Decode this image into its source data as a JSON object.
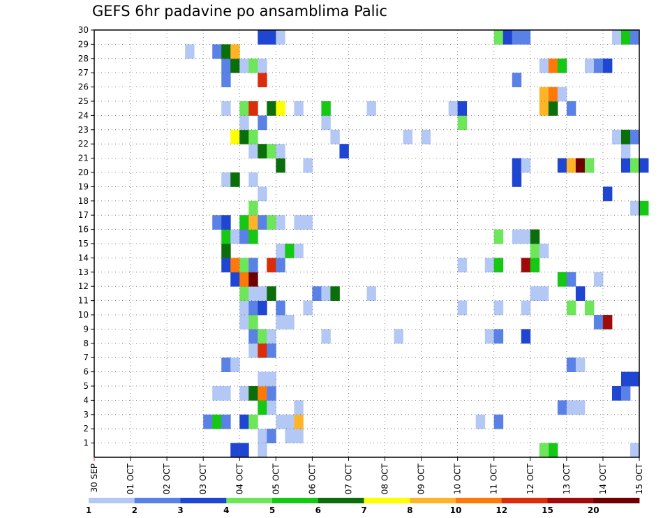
{
  "title": "GEFS 6hr padavine po ansamblima Palic",
  "chart_data": {
    "type": "heatmap",
    "title": "GEFS 6hr padavine po ansamblima Palic",
    "x_tick_labels": [
      "30 SEP",
      "01 OCT",
      "02 OCT",
      "03 OCT",
      "04 OCT",
      "05 OCT",
      "06 OCT",
      "07 OCT",
      "08 OCT",
      "09 OCT",
      "10 OCT",
      "11 OCT",
      "12 OCT",
      "13 OCT",
      "14 OCT",
      "15 OCT"
    ],
    "y_tick_labels": [
      "1",
      "2",
      "3",
      "4",
      "5",
      "6",
      "7",
      "8",
      "9",
      "10",
      "11",
      "12",
      "13",
      "14",
      "15",
      "16",
      "17",
      "18",
      "19",
      "20",
      "21",
      "22",
      "23",
      "24",
      "25",
      "26",
      "27",
      "28",
      "29",
      "30"
    ],
    "x_range_days": [
      0,
      15
    ],
    "y_range": [
      0,
      30
    ],
    "time_step_hours": 6,
    "grid": true,
    "colorbar": {
      "position": "bottom",
      "tick_labels": [
        "1",
        "2",
        "3",
        "4",
        "5",
        "6",
        "7",
        "8",
        "10",
        "12",
        "15",
        "20"
      ],
      "colors": [
        "#b4c8f5",
        "#5a82e6",
        "#1e46d2",
        "#6ee65a",
        "#14c814",
        "#0a6e0a",
        "#ffff00",
        "#ffb428",
        "#ff780a",
        "#dc2d0a",
        "#a00a0a",
        "#6e0000"
      ]
    },
    "cells": [
      [
        4.0,
        0,
        "#1e46d2"
      ],
      [
        4.5,
        0,
        "#b4c8f5"
      ],
      [
        3.75,
        0,
        "#1e46d2"
      ],
      [
        12.5,
        0,
        "#14c814"
      ],
      [
        12.25,
        0,
        "#6ee65a"
      ],
      [
        14.75,
        0,
        "#b4c8f5"
      ],
      [
        4.5,
        1,
        "#b4c8f5"
      ],
      [
        4.75,
        1,
        "#5a82e6"
      ],
      [
        5.5,
        1,
        "#b4c8f5"
      ],
      [
        5.25,
        1,
        "#b4c8f5"
      ],
      [
        3.0,
        2,
        "#5a82e6"
      ],
      [
        3.25,
        2,
        "#14c814"
      ],
      [
        3.5,
        2,
        "#5a82e6"
      ],
      [
        4.0,
        2,
        "#1e46d2"
      ],
      [
        4.25,
        2,
        "#6ee65a"
      ],
      [
        5.0,
        2,
        "#b4c8f5"
      ],
      [
        5.25,
        2,
        "#b4c8f5"
      ],
      [
        5.5,
        2,
        "#ffb428"
      ],
      [
        10.5,
        2,
        "#b4c8f5"
      ],
      [
        11.0,
        2,
        "#5a82e6"
      ],
      [
        4.5,
        3,
        "#14c814"
      ],
      [
        4.75,
        3,
        "#b4c8f5"
      ],
      [
        5.5,
        3,
        "#b4c8f5"
      ],
      [
        12.75,
        3,
        "#5a82e6"
      ],
      [
        13.0,
        3,
        "#b4c8f5"
      ],
      [
        13.25,
        3,
        "#b4c8f5"
      ],
      [
        3.25,
        4,
        "#b4c8f5"
      ],
      [
        3.5,
        4,
        "#b4c8f5"
      ],
      [
        4.0,
        4,
        "#b4c8f5"
      ],
      [
        4.25,
        4,
        "#0a6e0a"
      ],
      [
        4.5,
        4,
        "#ff780a"
      ],
      [
        4.75,
        4,
        "#5a82e6"
      ],
      [
        14.25,
        4,
        "#1e46d2"
      ],
      [
        14.5,
        4,
        "#5a82e6"
      ],
      [
        4.5,
        5,
        "#b4c8f5"
      ],
      [
        4.75,
        5,
        "#b4c8f5"
      ],
      [
        14.5,
        5,
        "#1e46d2"
      ],
      [
        14.75,
        5,
        "#1e46d2"
      ],
      [
        3.5,
        6,
        "#5a82e6"
      ],
      [
        3.75,
        6,
        "#b4c8f5"
      ],
      [
        13.0,
        6,
        "#5a82e6"
      ],
      [
        13.25,
        6,
        "#b4c8f5"
      ],
      [
        4.25,
        7,
        "#b4c8f5"
      ],
      [
        4.5,
        7,
        "#dc2d0a"
      ],
      [
        4.75,
        7,
        "#5a82e6"
      ],
      [
        4.25,
        8,
        "#5a82e6"
      ],
      [
        4.5,
        8,
        "#6ee65a"
      ],
      [
        4.75,
        8,
        "#b4c8f5"
      ],
      [
        6.25,
        8,
        "#b4c8f5"
      ],
      [
        8.25,
        8,
        "#b4c8f5"
      ],
      [
        10.75,
        8,
        "#b4c8f5"
      ],
      [
        11.0,
        8,
        "#5a82e6"
      ],
      [
        11.75,
        8,
        "#1e46d2"
      ],
      [
        4.0,
        9,
        "#b4c8f5"
      ],
      [
        4.25,
        9,
        "#6ee65a"
      ],
      [
        5.0,
        9,
        "#b4c8f5"
      ],
      [
        5.25,
        9,
        "#b4c8f5"
      ],
      [
        13.75,
        9,
        "#5a82e6"
      ],
      [
        14.0,
        9,
        "#a00a0a"
      ],
      [
        4.0,
        10,
        "#b4c8f5"
      ],
      [
        4.25,
        10,
        "#5a82e6"
      ],
      [
        4.5,
        10,
        "#1e46d2"
      ],
      [
        5.0,
        10,
        "#5a82e6"
      ],
      [
        5.75,
        10,
        "#b4c8f5"
      ],
      [
        10.0,
        10,
        "#b4c8f5"
      ],
      [
        11.0,
        10,
        "#b4c8f5"
      ],
      [
        11.75,
        10,
        "#b4c8f5"
      ],
      [
        13.0,
        10,
        "#6ee65a"
      ],
      [
        13.5,
        10,
        "#6ee65a"
      ],
      [
        4.0,
        11,
        "#6ee65a"
      ],
      [
        4.25,
        11,
        "#b4c8f5"
      ],
      [
        4.5,
        11,
        "#b4c8f5"
      ],
      [
        4.75,
        11,
        "#0a6e0a"
      ],
      [
        6.0,
        11,
        "#5a82e6"
      ],
      [
        6.25,
        11,
        "#b4c8f5"
      ],
      [
        6.5,
        11,
        "#0a6e0a"
      ],
      [
        7.5,
        11,
        "#b4c8f5"
      ],
      [
        12.0,
        11,
        "#b4c8f5"
      ],
      [
        12.25,
        11,
        "#b4c8f5"
      ],
      [
        13.25,
        11,
        "#1e46d2"
      ],
      [
        3.75,
        12,
        "#1e46d2"
      ],
      [
        4.0,
        12,
        "#ff780a"
      ],
      [
        4.25,
        12,
        "#6e0000"
      ],
      [
        12.75,
        12,
        "#14c814"
      ],
      [
        13.0,
        12,
        "#5a82e6"
      ],
      [
        13.75,
        12,
        "#b4c8f5"
      ],
      [
        3.5,
        13,
        "#1e46d2"
      ],
      [
        3.75,
        13,
        "#ff780a"
      ],
      [
        4.0,
        13,
        "#6ee65a"
      ],
      [
        4.25,
        13,
        "#5a82e6"
      ],
      [
        4.75,
        13,
        "#dc2d0a"
      ],
      [
        5.0,
        13,
        "#5a82e6"
      ],
      [
        10.0,
        13,
        "#b4c8f5"
      ],
      [
        10.75,
        13,
        "#b4c8f5"
      ],
      [
        11.0,
        13,
        "#14c814"
      ],
      [
        11.75,
        13,
        "#a00a0a"
      ],
      [
        12.0,
        13,
        "#14c814"
      ],
      [
        3.5,
        14,
        "#0a6e0a"
      ],
      [
        5.0,
        14,
        "#b4c8f5"
      ],
      [
        5.25,
        14,
        "#14c814"
      ],
      [
        5.5,
        14,
        "#b4c8f5"
      ],
      [
        12.0,
        14,
        "#6ee65a"
      ],
      [
        12.25,
        14,
        "#b4c8f5"
      ],
      [
        3.5,
        15,
        "#14c814"
      ],
      [
        3.75,
        15,
        "#b4c8f5"
      ],
      [
        4.0,
        15,
        "#5a82e6"
      ],
      [
        4.25,
        15,
        "#14c814"
      ],
      [
        11.0,
        15,
        "#6ee65a"
      ],
      [
        11.5,
        15,
        "#b4c8f5"
      ],
      [
        11.75,
        15,
        "#b4c8f5"
      ],
      [
        12.0,
        15,
        "#0a6e0a"
      ],
      [
        3.25,
        16,
        "#5a82e6"
      ],
      [
        3.5,
        16,
        "#1e46d2"
      ],
      [
        4.0,
        16,
        "#14c814"
      ],
      [
        4.25,
        16,
        "#ffb428"
      ],
      [
        4.5,
        16,
        "#5a82e6"
      ],
      [
        4.75,
        16,
        "#6ee65a"
      ],
      [
        5.0,
        16,
        "#b4c8f5"
      ],
      [
        5.5,
        16,
        "#b4c8f5"
      ],
      [
        5.75,
        16,
        "#b4c8f5"
      ],
      [
        4.25,
        17,
        "#6ee65a"
      ],
      [
        14.75,
        17,
        "#b4c8f5"
      ],
      [
        15.0,
        17,
        "#14c814"
      ],
      [
        4.5,
        18,
        "#b4c8f5"
      ],
      [
        14.0,
        18,
        "#1e46d2"
      ],
      [
        3.5,
        19,
        "#b4c8f5"
      ],
      [
        3.75,
        19,
        "#0a6e0a"
      ],
      [
        4.25,
        19,
        "#b4c8f5"
      ],
      [
        11.5,
        19,
        "#1e46d2"
      ],
      [
        5.0,
        20,
        "#0a6e0a"
      ],
      [
        5.75,
        20,
        "#b4c8f5"
      ],
      [
        11.5,
        20,
        "#1e46d2"
      ],
      [
        11.75,
        20,
        "#b4c8f5"
      ],
      [
        12.75,
        20,
        "#1e46d2"
      ],
      [
        13.0,
        20,
        "#ffb428"
      ],
      [
        13.25,
        20,
        "#6e0000"
      ],
      [
        13.5,
        20,
        "#6ee65a"
      ],
      [
        14.5,
        20,
        "#1e46d2"
      ],
      [
        14.75,
        20,
        "#6ee65a"
      ],
      [
        15.0,
        20,
        "#1e46d2"
      ],
      [
        4.25,
        21,
        "#b4c8f5"
      ],
      [
        4.5,
        21,
        "#0a6e0a"
      ],
      [
        4.75,
        21,
        "#6ee65a"
      ],
      [
        5.0,
        21,
        "#b4c8f5"
      ],
      [
        6.75,
        21,
        "#1e46d2"
      ],
      [
        14.5,
        21,
        "#b4c8f5"
      ],
      [
        3.75,
        22,
        "#ffff00"
      ],
      [
        4.0,
        22,
        "#0a6e0a"
      ],
      [
        4.25,
        22,
        "#6ee65a"
      ],
      [
        6.5,
        22,
        "#b4c8f5"
      ],
      [
        8.5,
        22,
        "#b4c8f5"
      ],
      [
        9.0,
        22,
        "#b4c8f5"
      ],
      [
        14.25,
        22,
        "#b4c8f5"
      ],
      [
        14.5,
        22,
        "#0a6e0a"
      ],
      [
        14.75,
        22,
        "#5a82e6"
      ],
      [
        4.0,
        23,
        "#b4c8f5"
      ],
      [
        4.5,
        23,
        "#5a82e6"
      ],
      [
        6.25,
        23,
        "#b4c8f5"
      ],
      [
        10.0,
        23,
        "#6ee65a"
      ],
      [
        3.5,
        24,
        "#b4c8f5"
      ],
      [
        4.0,
        24,
        "#6ee65a"
      ],
      [
        4.25,
        24,
        "#dc2d0a"
      ],
      [
        4.75,
        24,
        "#0a6e0a"
      ],
      [
        5.0,
        24,
        "#ffff00"
      ],
      [
        5.5,
        24,
        "#b4c8f5"
      ],
      [
        6.25,
        24,
        "#14c814"
      ],
      [
        7.5,
        24,
        "#b4c8f5"
      ],
      [
        9.75,
        24,
        "#b4c8f5"
      ],
      [
        10.0,
        24,
        "#1e46d2"
      ],
      [
        12.25,
        24,
        "#ffb428"
      ],
      [
        12.5,
        24,
        "#0a6e0a"
      ],
      [
        13.0,
        24,
        "#5a82e6"
      ],
      [
        12.25,
        25,
        "#ffb428"
      ],
      [
        12.5,
        25,
        "#ff780a"
      ],
      [
        12.75,
        25,
        "#b4c8f5"
      ],
      [
        3.5,
        26,
        "#5a82e6"
      ],
      [
        4.5,
        26,
        "#dc2d0a"
      ],
      [
        11.5,
        26,
        "#5a82e6"
      ],
      [
        3.5,
        27,
        "#5a82e6"
      ],
      [
        3.75,
        27,
        "#0a6e0a"
      ],
      [
        4.0,
        27,
        "#b4c8f5"
      ],
      [
        4.25,
        27,
        "#6ee65a"
      ],
      [
        4.5,
        27,
        "#b4c8f5"
      ],
      [
        12.25,
        27,
        "#b4c8f5"
      ],
      [
        12.5,
        27,
        "#ff780a"
      ],
      [
        12.75,
        27,
        "#14c814"
      ],
      [
        13.5,
        27,
        "#b4c8f5"
      ],
      [
        13.75,
        27,
        "#5a82e6"
      ],
      [
        14.0,
        27,
        "#1e46d2"
      ],
      [
        2.5,
        28,
        "#b4c8f5"
      ],
      [
        3.25,
        28,
        "#5a82e6"
      ],
      [
        3.5,
        28,
        "#0a6e0a"
      ],
      [
        3.75,
        28,
        "#ffb428"
      ],
      [
        4.5,
        29,
        "#1e46d2"
      ],
      [
        4.75,
        29,
        "#1e46d2"
      ],
      [
        5.0,
        29,
        "#b4c8f5"
      ],
      [
        11.0,
        29,
        "#6ee65a"
      ],
      [
        11.25,
        29,
        "#1e46d2"
      ],
      [
        11.5,
        29,
        "#5a82e6"
      ],
      [
        11.75,
        29,
        "#5a82e6"
      ],
      [
        14.25,
        29,
        "#b4c8f5"
      ],
      [
        14.5,
        29,
        "#14c814"
      ],
      [
        14.75,
        29,
        "#5a82e6"
      ]
    ]
  }
}
